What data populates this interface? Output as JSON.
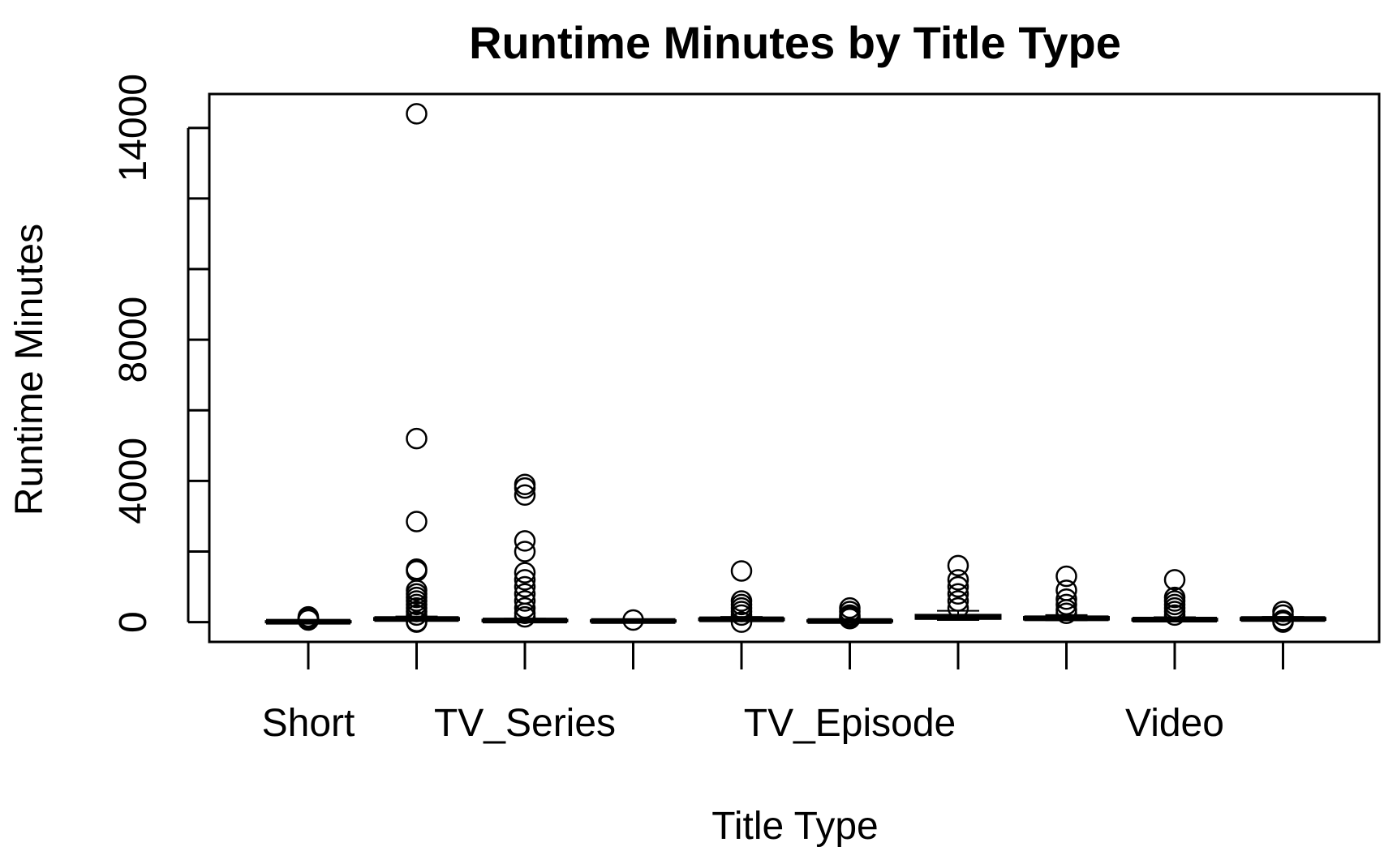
{
  "chart_data": {
    "type": "box",
    "title": "Runtime Minutes by Title Type",
    "xlabel": "Title Type",
    "ylabel": "Runtime Minutes",
    "ylim": [
      -560,
      14960
    ],
    "yticks": [
      0,
      4000,
      8000,
      14000
    ],
    "ytick_marks": [
      0,
      2000,
      4000,
      6000,
      8000,
      10000,
      12000,
      14000
    ],
    "categories": [
      "Short",
      "",
      "TV_Series",
      "",
      "",
      "TV_Episode",
      "",
      "",
      "Video",
      ""
    ],
    "tick_labels_shown": [
      "Short",
      "TV_Series",
      "TV_Episode",
      "Video"
    ],
    "grid": false,
    "legend": "none",
    "boxes": [
      {
        "category": "Short",
        "q1": 0,
        "median": 12,
        "q3": 22,
        "whisker_low": 0,
        "whisker_high": 50,
        "outliers": [
          60,
          80,
          100,
          120,
          150
        ]
      },
      {
        "category": "",
        "q1": 70,
        "median": 90,
        "q3": 110,
        "whisker_low": 50,
        "whisker_high": 160,
        "outliers": [
          0,
          20,
          200,
          300,
          400,
          500,
          600,
          700,
          800,
          900,
          1450,
          1500,
          2850,
          5200,
          14400
        ]
      },
      {
        "category": "TV_Series",
        "q1": 30,
        "median": 45,
        "q3": 60,
        "whisker_low": 20,
        "whisker_high": 100,
        "outliers": [
          150,
          250,
          400,
          600,
          800,
          1000,
          1200,
          1400,
          2000,
          2300,
          3600,
          3800,
          3900
        ]
      },
      {
        "category": "",
        "q1": 20,
        "median": 30,
        "q3": 45,
        "whisker_low": 10,
        "whisker_high": 70,
        "outliers": [
          60
        ]
      },
      {
        "category": "",
        "q1": 60,
        "median": 80,
        "q3": 100,
        "whisker_low": 40,
        "whisker_high": 150,
        "outliers": [
          0,
          200,
          300,
          400,
          500,
          600,
          1450
        ]
      },
      {
        "category": "TV_Episode",
        "q1": 20,
        "median": 30,
        "q3": 45,
        "whisker_low": 10,
        "whisker_high": 80,
        "outliers": [
          100,
          150,
          200,
          300,
          400
        ]
      },
      {
        "category": "",
        "q1": 100,
        "median": 150,
        "q3": 200,
        "whisker_low": 60,
        "whisker_high": 320,
        "outliers": [
          400,
          600,
          800,
          1000,
          1200,
          1600
        ]
      },
      {
        "category": "",
        "q1": 80,
        "median": 110,
        "q3": 140,
        "whisker_low": 50,
        "whisker_high": 200,
        "outliers": [
          250,
          350,
          500,
          650,
          900,
          1300
        ]
      },
      {
        "category": "Video",
        "q1": 50,
        "median": 70,
        "q3": 90,
        "whisker_low": 30,
        "whisker_high": 140,
        "outliers": [
          200,
          300,
          400,
          500,
          600,
          700,
          1200
        ]
      },
      {
        "category": "",
        "q1": 70,
        "median": 90,
        "q3": 110,
        "whisker_low": 40,
        "whisker_high": 150,
        "outliers": [
          0,
          50,
          200,
          300
        ]
      }
    ]
  }
}
